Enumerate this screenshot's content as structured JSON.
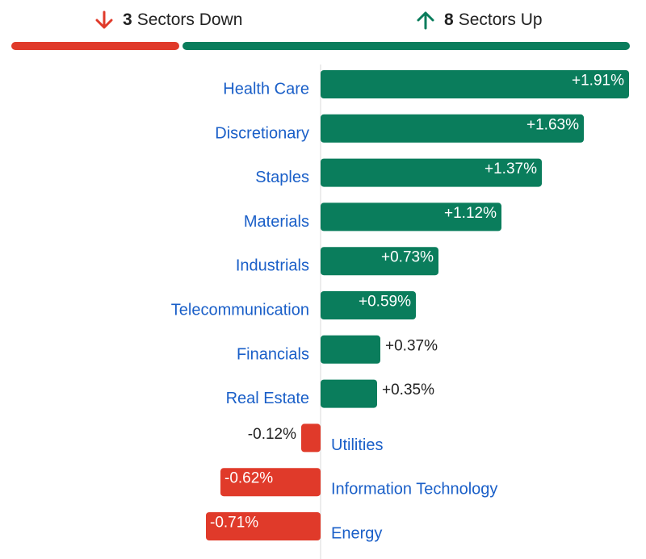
{
  "summary": {
    "down": {
      "count": "3",
      "label": "Sectors Down",
      "color": "#e03a2a",
      "icon": "arrow-down-icon"
    },
    "up": {
      "count": "8",
      "label": "Sectors Up",
      "color": "#0a7d5c",
      "icon": "arrow-up-icon"
    }
  },
  "colors": {
    "positive": "#0a7d5c",
    "negative": "#e03a2a",
    "sector_label": "#1a5fc8",
    "value_text": "#222222",
    "axis": "#d8d8d8"
  },
  "chart_data": {
    "type": "bar",
    "orientation": "horizontal",
    "categories": [
      "Health Care",
      "Discretionary",
      "Staples",
      "Materials",
      "Industrials",
      "Telecommunication",
      "Financials",
      "Real Estate",
      "Utilities",
      "Information Technology",
      "Energy"
    ],
    "values": [
      1.91,
      1.63,
      1.37,
      1.12,
      0.73,
      0.59,
      0.37,
      0.35,
      -0.12,
      -0.62,
      -0.71
    ],
    "labels": [
      "+1.91%",
      "+1.63%",
      "+1.37%",
      "+1.12%",
      "+0.73%",
      "+0.59%",
      "+0.37%",
      "+0.35%",
      "-0.12%",
      "-0.62%",
      "-0.71%"
    ],
    "xlim": [
      -1.09,
      2.05
    ],
    "ylabel": "",
    "xlabel": "",
    "title": ""
  }
}
